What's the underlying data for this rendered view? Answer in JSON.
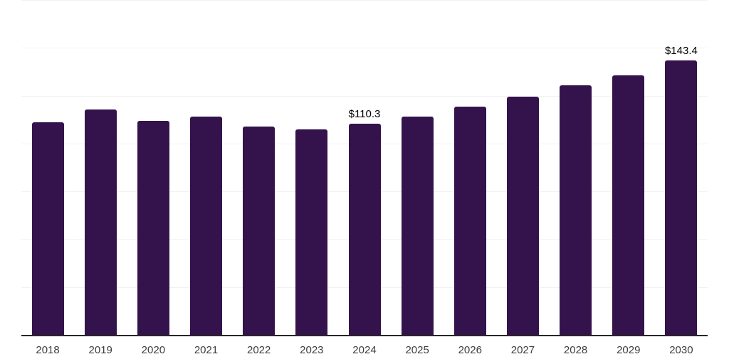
{
  "chart_data": {
    "type": "bar",
    "title": "",
    "xlabel": "",
    "ylabel": "",
    "categories": [
      "2018",
      "2019",
      "2020",
      "2021",
      "2022",
      "2023",
      "2024",
      "2025",
      "2026",
      "2027",
      "2028",
      "2029",
      "2030"
    ],
    "values": [
      111.2,
      117.9,
      111.8,
      113.9,
      108.9,
      107.4,
      110.3,
      114.2,
      119.2,
      124.5,
      130.3,
      135.8,
      143.4
    ],
    "data_labels": [
      null,
      null,
      null,
      null,
      null,
      null,
      "$110.3",
      null,
      null,
      null,
      null,
      null,
      "$143.4"
    ],
    "ylim": [
      0,
      175
    ],
    "gridline_step": 25,
    "legend": "none",
    "grid": "horizontal-only, no y-axis tick labels",
    "colors": {
      "bar": "#34134d",
      "axis_line": "#262626",
      "gridline": "#f2f2f2",
      "value_label": "#000000",
      "tick_label": "#3d3d3d",
      "background": "#ffffff"
    }
  }
}
